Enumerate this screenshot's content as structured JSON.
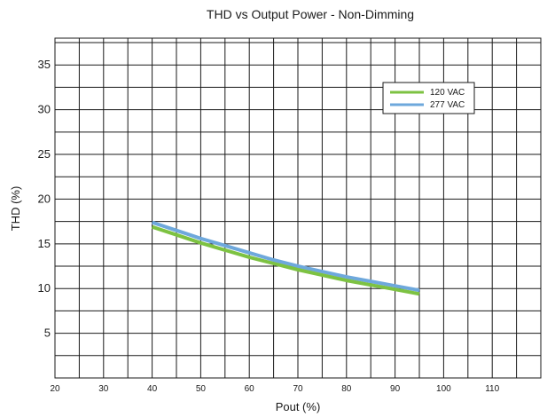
{
  "chart_data": {
    "type": "line",
    "title": "THD vs Output Power - Non-Dimming",
    "xlabel": "Pout (%)",
    "ylabel": "THD (%)",
    "xlim": [
      20,
      120
    ],
    "ylim": [
      0,
      38
    ],
    "xticks": [
      20,
      30,
      40,
      50,
      60,
      70,
      80,
      90,
      100,
      110
    ],
    "yticks": [
      5,
      10,
      15,
      20,
      25,
      30,
      35
    ],
    "grid": true,
    "legend_position": "top-right",
    "series": [
      {
        "name": "120 VAC",
        "color": "#7dc242",
        "x": [
          40,
          45,
          50,
          55,
          60,
          65,
          70,
          75,
          80,
          85,
          90,
          95
        ],
        "y": [
          16.9,
          16.0,
          15.1,
          14.3,
          13.5,
          12.8,
          12.1,
          11.5,
          10.9,
          10.4,
          9.9,
          9.4
        ]
      },
      {
        "name": "277 VAC",
        "color": "#6ea8dc",
        "x": [
          40,
          45,
          50,
          55,
          60,
          65,
          70,
          75,
          80,
          85,
          90,
          95
        ],
        "y": [
          17.4,
          16.5,
          15.6,
          14.8,
          14.0,
          13.2,
          12.5,
          11.9,
          11.3,
          10.8,
          10.3,
          9.8
        ]
      }
    ]
  }
}
